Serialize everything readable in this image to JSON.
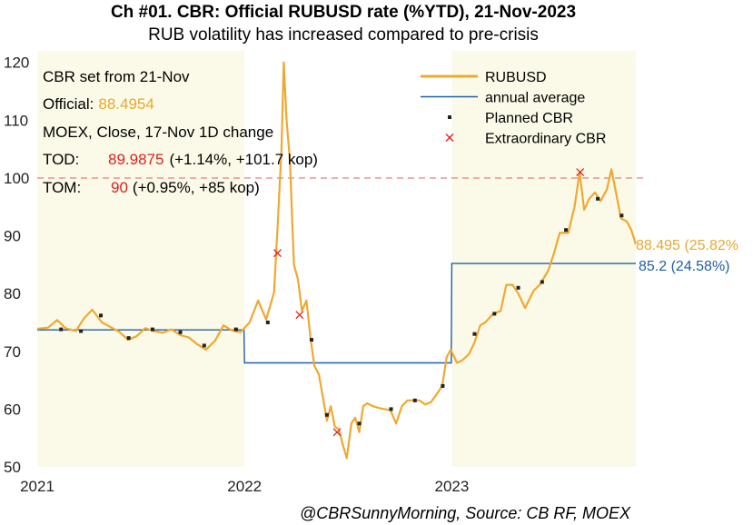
{
  "chart_data": {
    "type": "line",
    "title": "Ch #01. CBR: Official RUBUSD rate (%YTD), 21-Nov-2023",
    "subtitle": "RUB volatility has increased compared to pre-crisis",
    "source": "@CBRSunnyMorning, Source: CB RF, MOEX",
    "xlim": [
      "2021-01-01",
      "2023-11-21"
    ],
    "ylim": [
      50,
      122
    ],
    "x_ticks": [
      "2021",
      "2022",
      "2023"
    ],
    "y_ticks": [
      50,
      60,
      70,
      80,
      90,
      100,
      110,
      120
    ],
    "highlight_years": [
      "2021",
      "2023"
    ],
    "reference_line": 100,
    "colors": {
      "rubusd": "#F0A830",
      "average": "#1F5FA8",
      "planned": "#222222",
      "extraordinary": "#E02020",
      "reference": "#E06060",
      "highlight": "#FBFAE8",
      "red_text": "#E02020",
      "gold_text": "#E8A830"
    },
    "legend": [
      {
        "label": "RUBUSD",
        "marker": "line",
        "color": "#F0A830"
      },
      {
        "label": "annual average",
        "marker": "thin-line",
        "color": "#1F5FA8"
      },
      {
        "label": "Planned CBR",
        "marker": "square",
        "color": "#222222"
      },
      {
        "label": "Extraordinary CBR",
        "marker": "x",
        "color": "#E02020"
      }
    ],
    "legend_position": "top-center",
    "notes": {
      "line1": "CBR set from 21-Nov",
      "official_label": "Official:",
      "official_value": "88.4954",
      "line3": "MOEX, Close, 17-Nov 1D change",
      "tod_label": "TOD:",
      "tod_value": "89.9875",
      "tod_change": "(+1.14%, +101.7 kop)",
      "tom_label": "TOM:",
      "tom_value": "90",
      "tom_change": "(+0.95%, +85 kop)"
    },
    "end_labels": {
      "rubusd": "88.495 (25.82%",
      "average": "85.2 (24.58%)"
    },
    "series": [
      {
        "name": "RUBUSD",
        "points": [
          [
            "2021-01-01",
            73.9
          ],
          [
            "2021-01-20",
            74.1
          ],
          [
            "2021-02-05",
            75.4
          ],
          [
            "2021-02-20",
            74.0
          ],
          [
            "2021-03-10",
            73.5
          ],
          [
            "2021-03-25",
            75.8
          ],
          [
            "2021-04-08",
            77.2
          ],
          [
            "2021-04-25",
            75.0
          ],
          [
            "2021-05-10",
            74.2
          ],
          [
            "2021-05-25",
            73.4
          ],
          [
            "2021-06-10",
            72.0
          ],
          [
            "2021-06-25",
            72.6
          ],
          [
            "2021-07-10",
            74.0
          ],
          [
            "2021-07-25",
            73.5
          ],
          [
            "2021-08-10",
            73.2
          ],
          [
            "2021-08-25",
            73.8
          ],
          [
            "2021-09-10",
            72.8
          ],
          [
            "2021-09-25",
            72.4
          ],
          [
            "2021-10-10",
            71.2
          ],
          [
            "2021-10-25",
            70.3
          ],
          [
            "2021-11-10",
            71.8
          ],
          [
            "2021-11-25",
            74.5
          ],
          [
            "2021-12-10",
            73.6
          ],
          [
            "2021-12-25",
            73.3
          ],
          [
            "2022-01-10",
            75.0
          ],
          [
            "2022-01-25",
            78.8
          ],
          [
            "2022-02-08",
            75.5
          ],
          [
            "2022-02-22",
            80.2
          ],
          [
            "2022-03-01",
            93.0
          ],
          [
            "2022-03-07",
            105.0
          ],
          [
            "2022-03-11",
            120.0
          ],
          [
            "2022-03-16",
            110.0
          ],
          [
            "2022-03-22",
            103.0
          ],
          [
            "2022-03-29",
            85.0
          ],
          [
            "2022-04-05",
            82.5
          ],
          [
            "2022-04-12",
            77.0
          ],
          [
            "2022-04-20",
            78.8
          ],
          [
            "2022-04-27",
            72.5
          ],
          [
            "2022-05-04",
            67.5
          ],
          [
            "2022-05-12",
            66.0
          ],
          [
            "2022-05-20",
            61.5
          ],
          [
            "2022-05-26",
            58.0
          ],
          [
            "2022-06-02",
            60.5
          ],
          [
            "2022-06-09",
            57.0
          ],
          [
            "2022-06-16",
            56.5
          ],
          [
            "2022-06-24",
            53.5
          ],
          [
            "2022-06-30",
            51.5
          ],
          [
            "2022-07-08",
            57.5
          ],
          [
            "2022-07-15",
            58.5
          ],
          [
            "2022-07-22",
            56.0
          ],
          [
            "2022-07-29",
            60.5
          ],
          [
            "2022-08-05",
            61.0
          ],
          [
            "2022-08-15",
            60.5
          ],
          [
            "2022-08-25",
            60.2
          ],
          [
            "2022-09-05",
            60.0
          ],
          [
            "2022-09-15",
            59.8
          ],
          [
            "2022-09-25",
            57.5
          ],
          [
            "2022-10-05",
            60.5
          ],
          [
            "2022-10-15",
            61.5
          ],
          [
            "2022-10-25",
            61.5
          ],
          [
            "2022-11-05",
            61.5
          ],
          [
            "2022-11-15",
            60.8
          ],
          [
            "2022-11-25",
            61.2
          ],
          [
            "2022-12-05",
            62.5
          ],
          [
            "2022-12-15",
            64.0
          ],
          [
            "2022-12-23",
            69.0
          ],
          [
            "2022-12-30",
            70.3
          ],
          [
            "2023-01-10",
            68.0
          ],
          [
            "2023-01-20",
            68.5
          ],
          [
            "2023-01-31",
            69.5
          ],
          [
            "2023-02-10",
            71.5
          ],
          [
            "2023-02-20",
            74.5
          ],
          [
            "2023-03-01",
            75.0
          ],
          [
            "2023-03-15",
            76.5
          ],
          [
            "2023-03-28",
            77.0
          ],
          [
            "2023-04-07",
            81.5
          ],
          [
            "2023-04-18",
            81.5
          ],
          [
            "2023-04-28",
            80.0
          ],
          [
            "2023-05-10",
            77.5
          ],
          [
            "2023-05-25",
            80.5
          ],
          [
            "2023-06-05",
            81.5
          ],
          [
            "2023-06-20",
            84.0
          ],
          [
            "2023-06-30",
            87.0
          ],
          [
            "2023-07-10",
            90.5
          ],
          [
            "2023-07-25",
            90.5
          ],
          [
            "2023-08-05",
            95.0
          ],
          [
            "2023-08-14",
            101.0
          ],
          [
            "2023-08-22",
            94.5
          ],
          [
            "2023-08-31",
            96.4
          ],
          [
            "2023-09-10",
            97.5
          ],
          [
            "2023-09-20",
            96.0
          ],
          [
            "2023-10-01",
            98.0
          ],
          [
            "2023-10-09",
            101.5
          ],
          [
            "2023-10-17",
            97.5
          ],
          [
            "2023-10-26",
            93.0
          ],
          [
            "2023-11-05",
            92.5
          ],
          [
            "2023-11-13",
            91.0
          ],
          [
            "2023-11-21",
            88.495
          ]
        ]
      },
      {
        "name": "annual average",
        "points": [
          [
            "2021-01-01",
            73.7
          ],
          [
            "2021-12-31",
            73.7
          ],
          [
            "2022-01-01",
            68.0
          ],
          [
            "2022-12-31",
            68.0
          ],
          [
            "2023-01-01",
            85.2
          ],
          [
            "2023-11-21",
            85.2
          ]
        ]
      },
      {
        "name": "Planned CBR",
        "points": [
          [
            "2021-02-12",
            73.8
          ],
          [
            "2021-03-19",
            73.5
          ],
          [
            "2021-04-23",
            76.2
          ],
          [
            "2021-06-11",
            72.3
          ],
          [
            "2021-07-23",
            73.8
          ],
          [
            "2021-09-10",
            73.3
          ],
          [
            "2021-10-22",
            71.0
          ],
          [
            "2021-12-17",
            73.8
          ],
          [
            "2022-02-11",
            75.0
          ],
          [
            "2022-04-29",
            72.0
          ],
          [
            "2022-05-26",
            59.0
          ],
          [
            "2022-07-22",
            57.5
          ],
          [
            "2022-09-16",
            60.0
          ],
          [
            "2022-10-28",
            61.5
          ],
          [
            "2022-12-16",
            64.0
          ],
          [
            "2023-02-10",
            73.0
          ],
          [
            "2023-03-17",
            76.5
          ],
          [
            "2023-04-28",
            81.0
          ],
          [
            "2023-06-09",
            82.0
          ],
          [
            "2023-07-21",
            91.0
          ],
          [
            "2023-09-15",
            96.4
          ],
          [
            "2023-10-27",
            93.5
          ]
        ]
      },
      {
        "name": "Extraordinary CBR",
        "points": [
          [
            "2022-02-28",
            87.0
          ],
          [
            "2022-04-08",
            76.3
          ],
          [
            "2022-06-13",
            56.0
          ],
          [
            "2023-08-15",
            101.0
          ]
        ]
      }
    ]
  }
}
